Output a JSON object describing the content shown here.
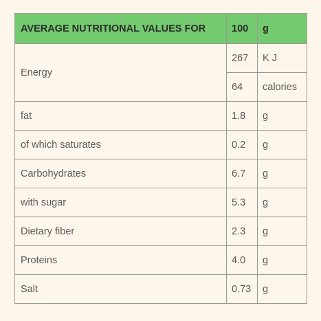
{
  "header": {
    "title": "AVERAGE NUTRITIONAL VALUES FOR",
    "amount": "100",
    "unit": "g"
  },
  "rows": [
    {
      "label": "Energy",
      "values": [
        {
          "amount": "267",
          "unit": "K J"
        },
        {
          "amount": "64",
          "unit": "calories"
        }
      ]
    },
    {
      "label": "fat",
      "values": [
        {
          "amount": "1.8",
          "unit": "g"
        }
      ]
    },
    {
      "label": "of which saturates",
      "values": [
        {
          "amount": "0.2",
          "unit": "g"
        }
      ]
    },
    {
      "label": "Carbohydrates",
      "values": [
        {
          "amount": "6.7",
          "unit": "g"
        }
      ]
    },
    {
      "label": "with sugar",
      "values": [
        {
          "amount": "5.3",
          "unit": "g"
        }
      ]
    },
    {
      "label": "Dietary fiber",
      "values": [
        {
          "amount": "2.3",
          "unit": "g"
        }
      ]
    },
    {
      "label": "Proteins",
      "values": [
        {
          "amount": "4.0",
          "unit": "g"
        }
      ]
    },
    {
      "label": "Salt",
      "values": [
        {
          "amount": "0.73",
          "unit": "g"
        }
      ]
    }
  ]
}
